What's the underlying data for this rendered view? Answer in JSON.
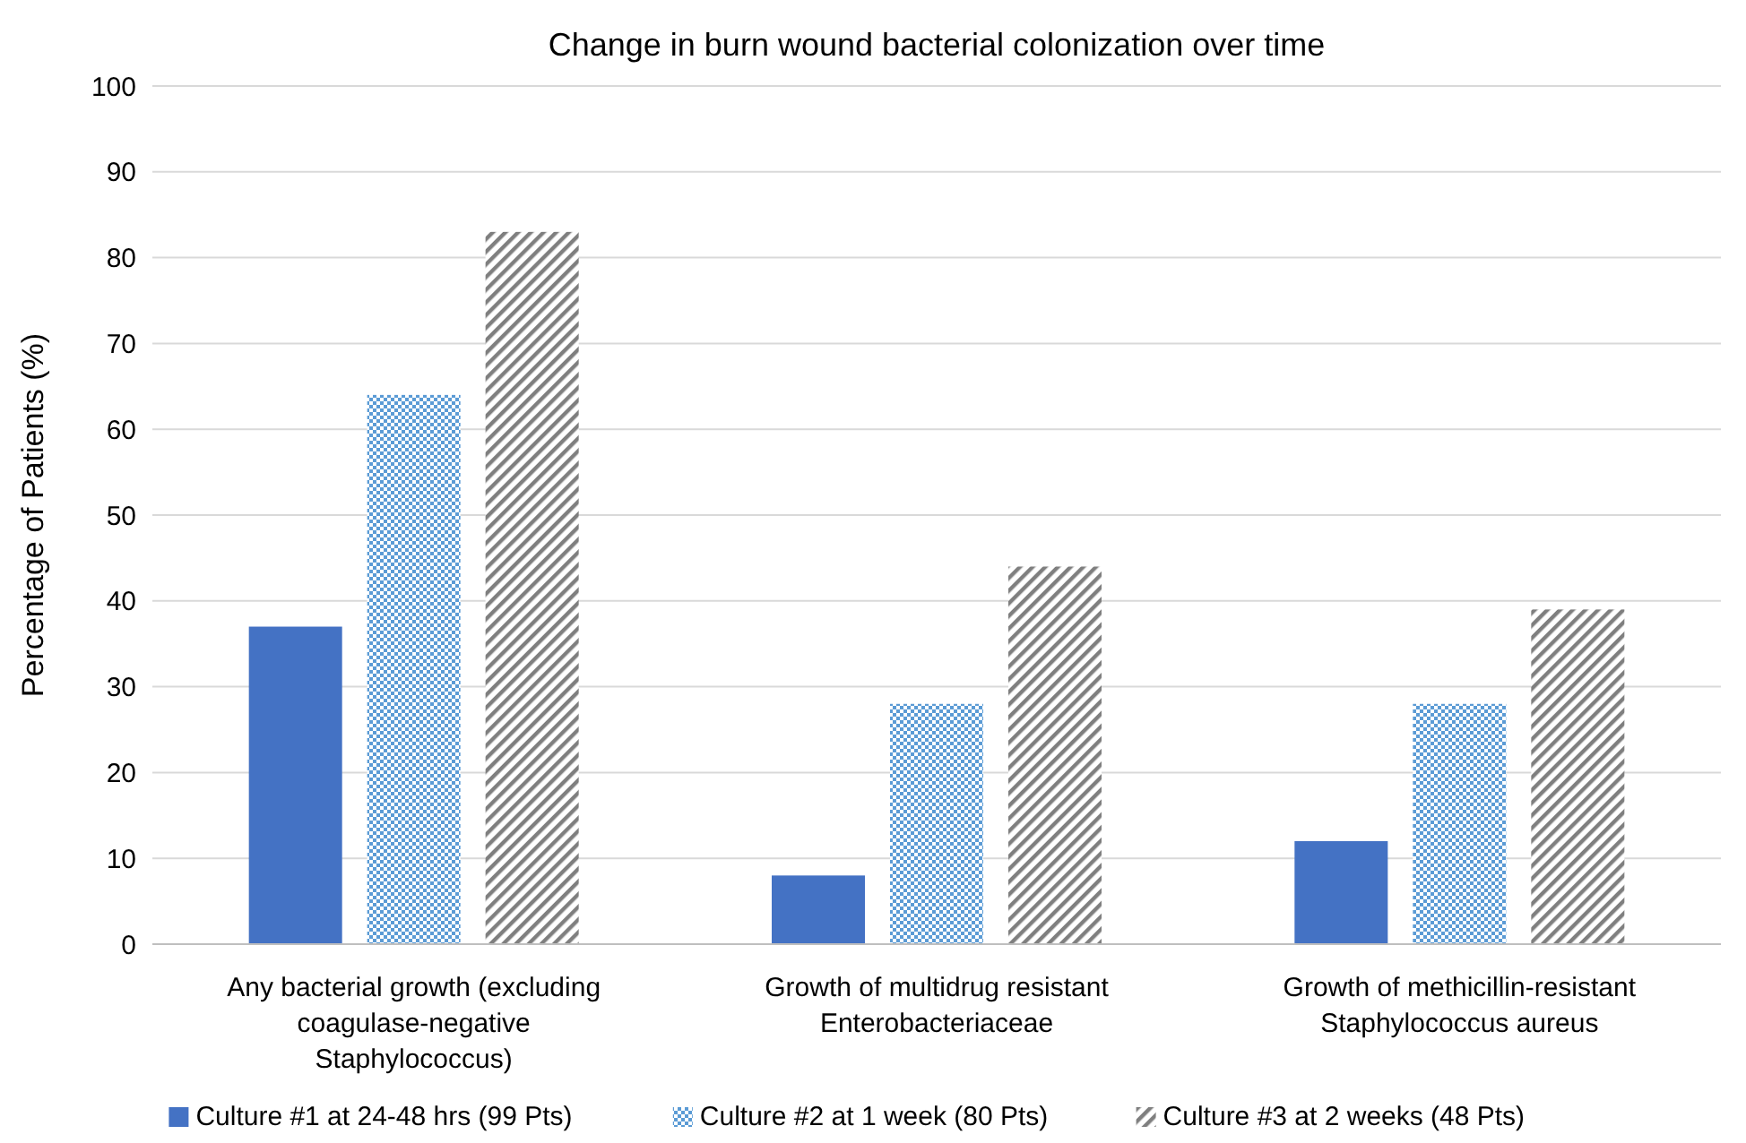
{
  "chart_data": {
    "type": "bar",
    "title": "Change in burn wound bacterial colonization over time",
    "ylabel": "Percentage of Patients (%)",
    "categories": [
      "Any bacterial growth (excluding coagulase-negative Staphylococcus)",
      "Growth of multidrug resistant Enterobacteriaceae",
      "Growth of methicillin-resistant Staphylococcus aureus"
    ],
    "series": [
      {
        "name": "Culture #1 at 24-48 hrs (99 Pts)",
        "color": "#4472c4",
        "values": [
          37,
          8,
          12
        ]
      },
      {
        "name": "Culture #2 at 1 week (80 Pts)",
        "color": "#5b9bd5",
        "values": [
          64,
          28,
          28
        ]
      },
      {
        "name": "Culture #3 at 2 weeks (48 Pts)",
        "color": "#7f7f7f",
        "values": [
          83,
          44,
          39
        ]
      }
    ],
    "ylim": [
      0,
      100
    ],
    "yticks": [
      0,
      10,
      20,
      30,
      40,
      50,
      60,
      70,
      80,
      90,
      100
    ],
    "grid": "y",
    "legend": "bottom"
  }
}
